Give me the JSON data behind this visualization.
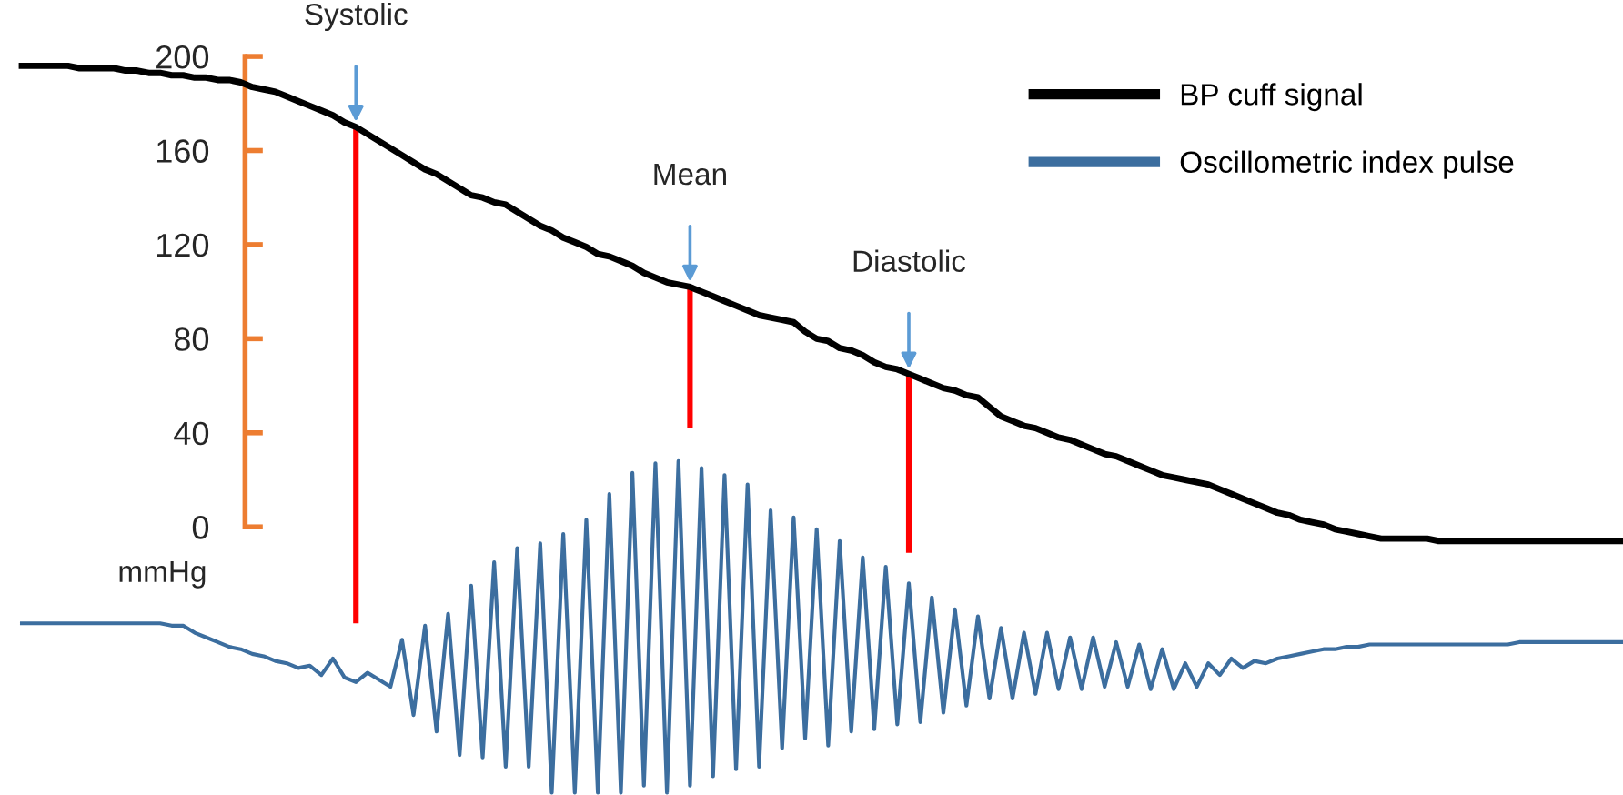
{
  "chart_data": {
    "type": "line",
    "ylim": [
      -114,
      224
    ],
    "yticks": [
      0,
      40,
      80,
      120,
      160,
      200
    ],
    "ylabel": "mmHg",
    "tick_labels": "y",
    "legend": "top right",
    "marker": "none",
    "line_style": "solid",
    "categories": [
      null,
      null,
      null,
      null,
      null,
      null,
      null,
      null,
      null,
      null,
      null,
      null,
      null,
      null,
      null,
      null,
      null,
      null,
      null,
      null,
      null,
      null,
      null,
      null,
      null,
      null,
      null,
      null,
      null,
      null,
      null,
      null,
      null,
      null,
      null,
      null,
      null,
      null,
      null,
      null,
      null,
      null,
      null,
      null,
      null,
      null,
      null,
      null,
      null,
      null,
      null,
      null,
      null,
      null,
      null,
      null,
      null,
      null,
      null,
      null,
      null,
      null,
      null,
      null,
      null,
      null,
      null,
      null,
      null,
      null,
      null,
      null,
      null,
      null,
      null,
      null,
      null,
      null,
      null,
      null,
      null,
      null,
      null,
      null,
      null,
      null,
      null,
      null,
      null,
      null,
      null,
      null,
      null,
      null,
      null,
      null,
      null,
      null,
      null,
      null,
      null,
      null,
      null,
      null,
      null,
      null,
      null,
      null,
      null,
      null,
      null,
      null,
      null,
      null,
      null,
      null,
      null,
      null,
      null,
      null,
      null,
      null,
      null,
      null,
      null,
      null,
      null,
      null,
      null,
      null,
      null,
      null,
      null,
      null,
      null,
      null,
      null,
      null,
      null,
      null
    ],
    "series": [
      {
        "name": "BP cuff signal",
        "color": "#000000",
        "values": [
          196,
          196,
          196,
          196,
          196,
          195,
          195,
          195,
          195,
          194,
          194,
          193,
          193,
          192,
          192,
          191,
          191,
          190,
          190,
          189,
          187,
          186,
          185,
          183,
          181,
          179,
          177,
          175,
          172,
          170,
          167,
          164,
          161,
          158,
          155,
          152,
          150,
          147,
          144,
          141,
          140,
          138,
          137,
          134,
          131,
          128,
          126,
          123,
          121,
          119,
          116,
          115,
          113,
          111,
          108,
          106,
          104,
          103,
          102,
          100,
          98,
          96,
          94,
          92,
          90,
          89,
          88,
          87,
          83,
          80,
          79,
          76,
          75,
          73,
          70,
          68,
          67,
          65,
          63,
          61,
          59,
          58,
          56,
          55,
          51,
          47,
          45,
          43,
          42,
          40,
          38,
          37,
          35,
          33,
          31,
          30,
          28,
          26,
          24,
          22,
          21,
          20,
          19,
          18,
          16,
          14,
          12,
          10,
          8,
          6,
          5,
          3,
          2,
          1,
          -1,
          -2,
          -3,
          -4,
          -5,
          -5,
          -5,
          -5,
          -5,
          -6,
          -6,
          -6,
          -6,
          -6,
          -6,
          -6,
          -6,
          -6,
          -6,
          -6,
          -6,
          -6,
          -6,
          -6,
          -6,
          -6
        ],
        "errors": [
          null,
          null,
          null,
          null,
          null,
          null,
          null,
          null,
          null,
          null,
          null,
          null,
          null,
          null,
          null,
          null,
          null,
          null,
          null,
          null,
          null,
          null,
          null,
          null,
          null,
          null,
          null,
          null,
          null,
          [
            -41,
            170
          ],
          null,
          null,
          null,
          null,
          null,
          null,
          null,
          null,
          null,
          null,
          null,
          null,
          null,
          null,
          null,
          null,
          null,
          null,
          null,
          null,
          null,
          null,
          null,
          null,
          null,
          null,
          null,
          null,
          [
            42,
            102
          ],
          null,
          null,
          null,
          null,
          null,
          null,
          null,
          null,
          null,
          null,
          null,
          null,
          null,
          null,
          null,
          null,
          null,
          null,
          [
            -11,
            65
          ],
          null,
          null,
          null,
          null,
          null,
          null,
          null,
          null,
          null,
          null,
          null,
          null,
          null,
          null,
          null,
          null,
          null,
          null,
          null,
          null,
          null,
          null,
          null,
          null,
          null,
          null,
          null,
          null,
          null,
          null,
          null,
          null,
          null,
          null,
          null,
          null,
          null,
          null,
          null,
          null,
          null,
          null,
          null,
          null,
          null,
          null,
          null,
          null,
          null,
          null,
          null,
          null,
          null,
          null,
          null,
          null,
          null,
          null,
          null,
          null,
          null,
          null
        ]
      },
      {
        "name": "Oscillometric index pulse",
        "color": "#3c6e9f",
        "values": [
          -41,
          -41,
          -41,
          -41,
          -41,
          -41,
          -41,
          -41,
          -41,
          -41,
          -41,
          -41,
          -41,
          -42,
          -42,
          -45,
          -47,
          -49,
          -51,
          -52,
          -54,
          -55,
          -57,
          -58,
          -60,
          -59,
          -63,
          -56,
          -64,
          -66,
          -62,
          -65,
          -68,
          -48,
          -80,
          -42,
          -87,
          -37,
          -97,
          -25,
          -98,
          -15,
          -102,
          -9,
          -102,
          -7,
          -113,
          -3,
          -113,
          3,
          -113,
          14,
          -113,
          23,
          -110,
          27,
          -113,
          28,
          -110,
          25,
          -106,
          22,
          -103,
          18,
          -102,
          7,
          -94,
          4,
          -90,
          -1,
          -93,
          -6,
          -87,
          -13,
          -86,
          -17,
          -84,
          -24,
          -83,
          -30,
          -79,
          -35,
          -76,
          -38,
          -73,
          -43,
          -73,
          -45,
          -71,
          -45,
          -69,
          -47,
          -69,
          -47,
          -68,
          -49,
          -68,
          -50,
          -69,
          -52,
          -69,
          -58,
          -68,
          -58,
          -63,
          -56,
          -60,
          -57,
          -58,
          -56,
          -55,
          -54,
          -53,
          -52,
          -52,
          -51,
          -51,
          -50,
          -50,
          -50,
          -50,
          -50,
          -50,
          -50,
          -50,
          -50,
          -50,
          -50,
          -50,
          -50,
          -49,
          -49,
          -49,
          -49,
          -49,
          -49,
          -49,
          -49,
          -49,
          -49
        ]
      }
    ],
    "annotations": [
      "Systolic",
      "Mean",
      "Diastolic"
    ]
  }
}
